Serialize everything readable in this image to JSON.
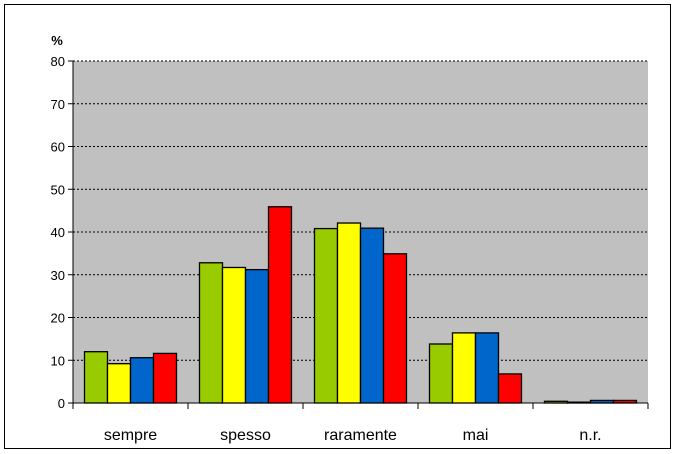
{
  "chart_data": {
    "type": "bar",
    "ylabel": "%",
    "ylim": [
      0,
      80
    ],
    "yticks": [
      0,
      10,
      20,
      30,
      40,
      50,
      60,
      70,
      80
    ],
    "grid": true,
    "plot_background": "#c0c0c0",
    "categories": [
      "sempre",
      "spesso",
      "raramente",
      "mai",
      "n.r."
    ],
    "series": [
      {
        "color": "#99cc00",
        "values": [
          12.0,
          32.8,
          40.8,
          13.8,
          0.4
        ]
      },
      {
        "color": "#ffff00",
        "values": [
          9.2,
          31.7,
          42.1,
          16.4,
          0.2
        ]
      },
      {
        "color": "#0066cc",
        "values": [
          10.6,
          31.2,
          40.9,
          16.4,
          0.6
        ]
      },
      {
        "color": "#ff0000",
        "values": [
          11.6,
          45.9,
          34.9,
          6.8,
          0.6
        ]
      }
    ]
  }
}
